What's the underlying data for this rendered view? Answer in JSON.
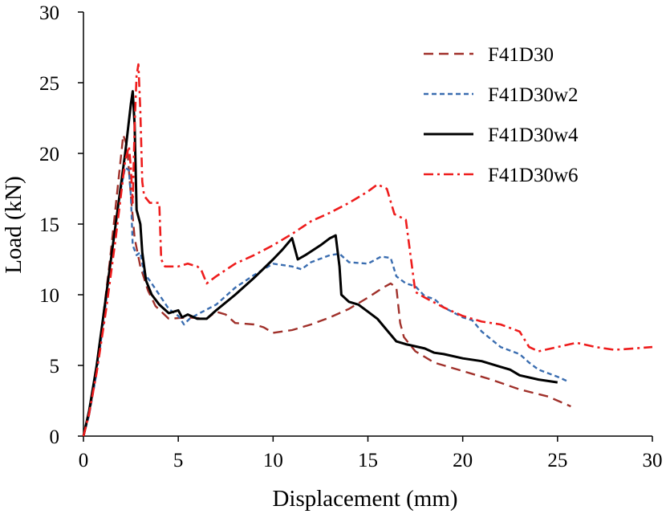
{
  "chart_data": {
    "type": "line",
    "title": "",
    "xlabel": "Displacement  (mm)",
    "ylabel": "Load  (kN)",
    "xlim": [
      0,
      30
    ],
    "ylim": [
      0,
      30
    ],
    "xticks": [
      0,
      5,
      10,
      15,
      20,
      25,
      30
    ],
    "yticks": [
      0,
      5,
      10,
      15,
      20,
      25,
      30
    ],
    "grid": false,
    "legend": "top-right",
    "series": [
      {
        "name": "F41D30",
        "color": "#a0302a",
        "dash": "dashed",
        "points": [
          [
            0,
            0
          ],
          [
            0.3,
            1.5
          ],
          [
            0.6,
            4
          ],
          [
            1.0,
            8
          ],
          [
            1.4,
            12.5
          ],
          [
            1.8,
            17.5
          ],
          [
            2.1,
            21.3
          ],
          [
            2.3,
            20.5
          ],
          [
            2.5,
            17
          ],
          [
            2.7,
            14
          ],
          [
            3.0,
            12
          ],
          [
            3.4,
            10.3
          ],
          [
            3.8,
            9.2
          ],
          [
            4.5,
            8.3
          ],
          [
            5.5,
            8.4
          ],
          [
            6.5,
            8.3
          ],
          [
            7.0,
            8.8
          ],
          [
            7.5,
            8.6
          ],
          [
            8.0,
            8.0
          ],
          [
            9.0,
            7.9
          ],
          [
            9.5,
            7.7
          ],
          [
            10.0,
            7.3
          ],
          [
            11.0,
            7.5
          ],
          [
            12.0,
            7.9
          ],
          [
            13.0,
            8.4
          ],
          [
            14.0,
            9.0
          ],
          [
            15.0,
            9.8
          ],
          [
            15.8,
            10.5
          ],
          [
            16.2,
            10.8
          ],
          [
            16.5,
            10.5
          ],
          [
            16.7,
            8.0
          ],
          [
            16.9,
            7.0
          ],
          [
            17.5,
            6.0
          ],
          [
            18.5,
            5.2
          ],
          [
            20.0,
            4.6
          ],
          [
            21.5,
            4.0
          ],
          [
            23.0,
            3.3
          ],
          [
            24.5,
            2.8
          ],
          [
            25.7,
            2.1
          ]
        ]
      },
      {
        "name": "F41D30w2",
        "color": "#3a6db0",
        "dash": "short-dashed",
        "points": [
          [
            0,
            0
          ],
          [
            0.3,
            1.5
          ],
          [
            0.7,
            4.5
          ],
          [
            1.1,
            8.5
          ],
          [
            1.5,
            13
          ],
          [
            1.9,
            17
          ],
          [
            2.2,
            19
          ],
          [
            2.4,
            18.8
          ],
          [
            2.5,
            17
          ],
          [
            2.6,
            13.5
          ],
          [
            2.8,
            12.8
          ],
          [
            3.0,
            13
          ],
          [
            3.2,
            11.5
          ],
          [
            3.5,
            11
          ],
          [
            4.0,
            10
          ],
          [
            4.5,
            9
          ],
          [
            5.0,
            8.5
          ],
          [
            5.3,
            7.9
          ],
          [
            5.6,
            8.3
          ],
          [
            6.0,
            8.6
          ],
          [
            7.0,
            9.3
          ],
          [
            8.0,
            10.5
          ],
          [
            9.0,
            11.4
          ],
          [
            10.0,
            12.2
          ],
          [
            11.0,
            12
          ],
          [
            11.5,
            11.8
          ],
          [
            12.0,
            12.3
          ],
          [
            13.0,
            12.8
          ],
          [
            13.5,
            12.9
          ],
          [
            14.0,
            12.3
          ],
          [
            15.0,
            12.2
          ],
          [
            15.7,
            12.7
          ],
          [
            16.2,
            12.6
          ],
          [
            16.5,
            11.3
          ],
          [
            17.0,
            10.8
          ],
          [
            17.5,
            10.6
          ],
          [
            18.0,
            9.9
          ],
          [
            18.5,
            9.7
          ],
          [
            19.0,
            9.1
          ],
          [
            20.0,
            8.4
          ],
          [
            20.5,
            8.2
          ],
          [
            21.0,
            7.4
          ],
          [
            22.0,
            6.3
          ],
          [
            23.0,
            5.8
          ],
          [
            23.5,
            5.2
          ],
          [
            24.0,
            4.7
          ],
          [
            25.0,
            4.2
          ],
          [
            25.5,
            3.9
          ]
        ]
      },
      {
        "name": "F41D30w4",
        "color": "#000000",
        "dash": "solid",
        "points": [
          [
            0,
            0
          ],
          [
            0.3,
            1.8
          ],
          [
            0.7,
            5
          ],
          [
            1.2,
            10
          ],
          [
            1.7,
            15
          ],
          [
            2.2,
            20
          ],
          [
            2.5,
            23.5
          ],
          [
            2.6,
            24.4
          ],
          [
            2.7,
            22
          ],
          [
            2.8,
            16
          ],
          [
            3.0,
            15
          ],
          [
            3.1,
            13
          ],
          [
            3.3,
            11
          ],
          [
            3.6,
            10
          ],
          [
            4.0,
            9.3
          ],
          [
            4.5,
            8.7
          ],
          [
            5.0,
            8.9
          ],
          [
            5.2,
            8.4
          ],
          [
            5.5,
            8.6
          ],
          [
            6.0,
            8.3
          ],
          [
            6.5,
            8.3
          ],
          [
            7.0,
            8.9
          ],
          [
            8.0,
            10
          ],
          [
            9.0,
            11.2
          ],
          [
            10.0,
            12.5
          ],
          [
            10.5,
            13.2
          ],
          [
            11.0,
            14
          ],
          [
            11.3,
            12.5
          ],
          [
            11.7,
            12.8
          ],
          [
            12.5,
            13.5
          ],
          [
            13.0,
            14
          ],
          [
            13.3,
            14.2
          ],
          [
            13.5,
            12
          ],
          [
            13.6,
            10
          ],
          [
            14.0,
            9.5
          ],
          [
            14.5,
            9.3
          ],
          [
            15.0,
            8.8
          ],
          [
            15.5,
            8.3
          ],
          [
            16.0,
            7.5
          ],
          [
            16.5,
            6.7
          ],
          [
            17.0,
            6.5
          ],
          [
            18.0,
            6.2
          ],
          [
            18.5,
            5.9
          ],
          [
            19.0,
            5.8
          ],
          [
            20.0,
            5.5
          ],
          [
            21.0,
            5.3
          ],
          [
            22.0,
            4.9
          ],
          [
            22.5,
            4.7
          ],
          [
            23.0,
            4.3
          ],
          [
            24.0,
            4.0
          ],
          [
            25.0,
            3.8
          ]
        ]
      },
      {
        "name": "F41D30w6",
        "color": "#ee1c1c",
        "dash": "dash-dot",
        "points": [
          [
            0,
            0
          ],
          [
            0.3,
            1.6
          ],
          [
            0.7,
            4.5
          ],
          [
            1.2,
            9
          ],
          [
            1.7,
            14
          ],
          [
            2.2,
            19.5
          ],
          [
            2.4,
            20.5
          ],
          [
            2.5,
            19
          ],
          [
            2.6,
            16.5
          ],
          [
            2.7,
            22
          ],
          [
            2.8,
            25.5
          ],
          [
            2.9,
            26.3
          ],
          [
            3.0,
            23
          ],
          [
            3.1,
            18
          ],
          [
            3.2,
            17
          ],
          [
            3.5,
            16.5
          ],
          [
            4.0,
            16.5
          ],
          [
            4.1,
            12.5
          ],
          [
            4.3,
            12
          ],
          [
            5.0,
            12
          ],
          [
            5.5,
            12.2
          ],
          [
            6.0,
            12
          ],
          [
            6.2,
            11.8
          ],
          [
            6.5,
            10.8
          ],
          [
            7.0,
            11.3
          ],
          [
            8.0,
            12.2
          ],
          [
            9.0,
            12.8
          ],
          [
            10.0,
            13.5
          ],
          [
            11.0,
            14.3
          ],
          [
            12.0,
            15.2
          ],
          [
            13.0,
            15.8
          ],
          [
            14.0,
            16.5
          ],
          [
            15.0,
            17.3
          ],
          [
            15.5,
            17.8
          ],
          [
            16.0,
            17.5
          ],
          [
            16.4,
            15.7
          ],
          [
            17.0,
            15.3
          ],
          [
            17.5,
            10.2
          ],
          [
            18.0,
            9.8
          ],
          [
            19.0,
            9.1
          ],
          [
            20.0,
            8.5
          ],
          [
            21.0,
            8.1
          ],
          [
            22.0,
            7.9
          ],
          [
            23.0,
            7.4
          ],
          [
            23.5,
            6.3
          ],
          [
            24.0,
            6.0
          ],
          [
            25.0,
            6.3
          ],
          [
            26.0,
            6.6
          ],
          [
            27.0,
            6.3
          ],
          [
            28.0,
            6.1
          ],
          [
            29.0,
            6.2
          ],
          [
            30.0,
            6.3
          ]
        ]
      }
    ]
  }
}
